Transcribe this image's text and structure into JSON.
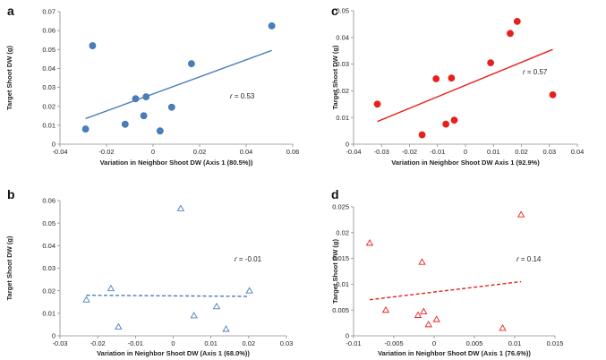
{
  "chart_data": [
    {
      "panel": "a",
      "type": "scatter",
      "marker": "filled-circle",
      "color": "#4a7ebb",
      "xlabel": "Variation in Neighbor Shoot DW (Axis 1 (80.5%))",
      "ylabel": "Target Shoot DW (g)",
      "xlim": [
        -0.04,
        0.06
      ],
      "ylim": [
        0,
        0.07
      ],
      "xticks": [
        -0.04,
        -0.02,
        0,
        0.02,
        0.04,
        0.06
      ],
      "xtick_labels": [
        "-0.04",
        "-0.02",
        "0",
        "0.02",
        "0.04",
        "0.06"
      ],
      "yticks": [
        0,
        0.01,
        0.02,
        0.03,
        0.04,
        0.05,
        0.06,
        0.07
      ],
      "ytick_labels": [
        "0",
        "0.01",
        "0.02",
        "0.03",
        "0.04",
        "0.05",
        "0.06",
        "0.07"
      ],
      "x": [
        -0.029,
        -0.026,
        -0.012,
        -0.0075,
        -0.004,
        -0.003,
        0.003,
        0.008,
        0.0165,
        0.051
      ],
      "y": [
        0.008,
        0.052,
        0.0105,
        0.024,
        0.015,
        0.025,
        0.007,
        0.0195,
        0.0425,
        0.0625
      ],
      "trend": {
        "style": "solid",
        "x": [
          -0.029,
          0.051
        ],
        "y": [
          0.0135,
          0.0495
        ]
      },
      "annotation": {
        "prefix": "r",
        "text": " = 0.53"
      }
    },
    {
      "panel": "b",
      "type": "scatter",
      "marker": "open-triangle",
      "color": "#4a7ebb",
      "xlabel": "Variation in Neighbor Shoot DW (Axis 1 (68.0%))",
      "ylabel": "Target Shoot DW (g)",
      "xlim": [
        -0.03,
        0.03
      ],
      "ylim": [
        0,
        0.06
      ],
      "xticks": [
        -0.03,
        -0.02,
        -0.01,
        0,
        0.01,
        0.02,
        0.03
      ],
      "xtick_labels": [
        "-0.03",
        "-0.02",
        "-0.01",
        "0",
        "0.01",
        "0.02",
        "0.03"
      ],
      "yticks": [
        0,
        0.01,
        0.02,
        0.03,
        0.04,
        0.05,
        0.06
      ],
      "ytick_labels": [
        "0",
        "0.01",
        "0.02",
        "0.03",
        "0.04",
        "0.05",
        "0.06"
      ],
      "x": [
        -0.023,
        -0.0165,
        -0.0145,
        0.002,
        0.0055,
        0.0115,
        0.014,
        0.0202
      ],
      "y": [
        0.016,
        0.021,
        0.004,
        0.0565,
        0.009,
        0.013,
        0.003,
        0.02
      ],
      "trend": {
        "style": "dashed",
        "x": [
          -0.023,
          0.0202
        ],
        "y": [
          0.018,
          0.0175
        ]
      },
      "annotation": {
        "prefix": "r",
        "text": " = -0.01"
      }
    },
    {
      "panel": "c",
      "type": "scatter",
      "marker": "filled-circle",
      "color": "#e8201c",
      "xlabel": "Variation in Neighbor Shoot DW Axis 1 (92.9%)",
      "ylabel": "Target Shoot DW (g)",
      "xlim": [
        -0.04,
        0.04
      ],
      "ylim": [
        0,
        0.05
      ],
      "xticks": [
        -0.04,
        -0.03,
        -0.02,
        -0.01,
        0,
        0.01,
        0.02,
        0.03,
        0.04
      ],
      "xtick_labels": [
        "-0.04",
        "-0.03",
        "-0.02",
        "-0.01",
        "0",
        "0.01",
        "0.02",
        "0.03",
        "0.04"
      ],
      "yticks": [
        0,
        0.01,
        0.02,
        0.03,
        0.04,
        0.05
      ],
      "ytick_labels": [
        "0",
        "0.01",
        "0.02",
        "0.03",
        "0.04",
        "0.05"
      ],
      "x": [
        -0.0315,
        -0.0155,
        -0.0105,
        -0.007,
        -0.005,
        -0.004,
        0.009,
        0.016,
        0.0185,
        0.0312
      ],
      "y": [
        0.015,
        0.0035,
        0.0245,
        0.0075,
        0.0248,
        0.009,
        0.0305,
        0.0415,
        0.046,
        0.0185
      ],
      "trend": {
        "style": "solid",
        "x": [
          -0.0315,
          0.0312
        ],
        "y": [
          0.0085,
          0.0355
        ]
      },
      "annotation": {
        "prefix": "r",
        "text": " = 0.57"
      }
    },
    {
      "panel": "d",
      "type": "scatter",
      "marker": "open-triangle",
      "color": "#e8201c",
      "xlabel": "Variation in Neighbor Shoot DW (Axis 1 (76.6%))",
      "ylabel": "Target Shoot DW (g)",
      "xlim": [
        -0.01,
        0.015
      ],
      "ylim": [
        0,
        0.025
      ],
      "xticks": [
        -0.01,
        -0.005,
        0,
        0.005,
        0.01,
        0.015
      ],
      "xtick_labels": [
        "-0.01",
        "-0.005",
        "0",
        "0.005",
        "0.01",
        "0.015"
      ],
      "yticks": [
        0,
        0.005,
        0.01,
        0.015,
        0.02,
        0.025
      ],
      "ytick_labels": [
        "0",
        "0.005",
        "0.01",
        "0.015",
        "0.02",
        "0.025"
      ],
      "x": [
        -0.008,
        -0.006,
        -0.002,
        -0.0015,
        -0.0013,
        -0.0007,
        0.0003,
        0.0085,
        0.0108
      ],
      "y": [
        0.018,
        0.005,
        0.004,
        0.0143,
        0.0047,
        0.0022,
        0.0032,
        0.0015,
        0.0235
      ],
      "trend": {
        "style": "dashed",
        "x": [
          -0.008,
          0.0108
        ],
        "y": [
          0.007,
          0.0105
        ]
      },
      "annotation": {
        "prefix": "r",
        "text": " = 0.14"
      }
    }
  ]
}
